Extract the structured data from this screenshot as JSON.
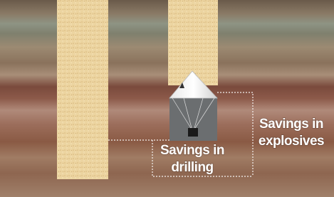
{
  "labels": {
    "drilling": [
      "Savings in",
      "drilling"
    ],
    "explosives": [
      "Savings in",
      "explosives"
    ]
  }
}
